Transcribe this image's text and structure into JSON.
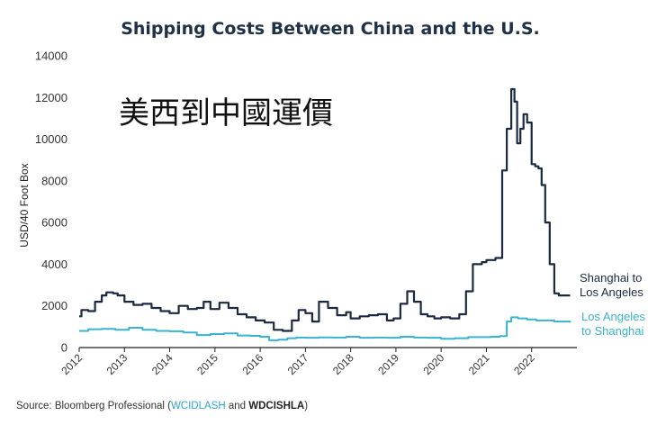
{
  "overlay_text": "美西到中國運價",
  "source": {
    "prefix": "Source: Bloomberg Professional (",
    "code1": "WCIDLASH",
    "and": " and ",
    "code2": "WDCISHLA",
    "suffix": ")"
  },
  "colors": {
    "series1": "#1b2a40",
    "series2": "#3ab3cf",
    "title": "#1f3146",
    "axis": "#222222"
  },
  "chart_data": {
    "type": "line",
    "title": "Shipping Costs Between China and the U.S.",
    "ylabel": "USD/40 Foot Box",
    "xlabel": "",
    "xlim": [
      2012,
      2023
    ],
    "ylim": [
      0,
      14000
    ],
    "yticks": [
      0,
      2000,
      4000,
      6000,
      8000,
      10000,
      12000,
      14000
    ],
    "ytick_labels": [
      "0",
      "2000",
      "4000",
      "6000",
      "8000",
      "10000",
      "12000",
      "14000"
    ],
    "xticks": [
      2012,
      2013,
      2014,
      2015,
      2016,
      2017,
      2018,
      2019,
      2020,
      2021,
      2022
    ],
    "xtick_labels": [
      "2012",
      "2013",
      "2014",
      "2015",
      "2016",
      "2017",
      "2018",
      "2019",
      "2020",
      "2021",
      "2022"
    ],
    "grid": false,
    "series": [
      {
        "name": "Shanghai to Los Angeles",
        "label_lines": [
          "Shanghai to",
          "Los Angeles"
        ],
        "x": [
          2012.0,
          2012.05,
          2012.2,
          2012.35,
          2012.5,
          2012.6,
          2012.75,
          2012.85,
          2013.0,
          2013.2,
          2013.4,
          2013.6,
          2013.8,
          2014.0,
          2014.2,
          2014.4,
          2014.6,
          2014.75,
          2014.9,
          2015.1,
          2015.3,
          2015.5,
          2015.7,
          2015.9,
          2016.1,
          2016.3,
          2016.5,
          2016.7,
          2016.85,
          2017.0,
          2017.15,
          2017.3,
          2017.5,
          2017.7,
          2017.9,
          2018.0,
          2018.2,
          2018.4,
          2018.6,
          2018.8,
          2018.95,
          2019.1,
          2019.25,
          2019.4,
          2019.55,
          2019.7,
          2019.85,
          2020.0,
          2020.2,
          2020.4,
          2020.55,
          2020.7,
          2020.9,
          2021.0,
          2021.2,
          2021.35,
          2021.45,
          2021.55,
          2021.62,
          2021.68,
          2021.75,
          2021.82,
          2021.9,
          2022.0,
          2022.08,
          2022.15,
          2022.22,
          2022.3,
          2022.4,
          2022.5,
          2022.6,
          2022.7,
          2022.78,
          2022.85
        ],
        "values": [
          1500,
          1800,
          1750,
          2200,
          2500,
          2650,
          2600,
          2500,
          2200,
          2050,
          2100,
          1900,
          1750,
          1650,
          2000,
          1850,
          1900,
          2200,
          1850,
          2150,
          1900,
          1600,
          1450,
          1300,
          1200,
          850,
          800,
          1300,
          1800,
          1650,
          1250,
          2200,
          1900,
          1550,
          1700,
          1400,
          1500,
          1550,
          1600,
          1300,
          1400,
          2100,
          2700,
          2200,
          1600,
          1500,
          1400,
          1450,
          1400,
          1600,
          2700,
          4000,
          4100,
          4200,
          4300,
          8500,
          10500,
          12400,
          11800,
          9800,
          10500,
          11200,
          10800,
          8800,
          8700,
          8600,
          7800,
          6000,
          4000,
          2600,
          2500,
          2500,
          2500,
          2500
        ]
      },
      {
        "name": "Los Angeles to Shanghai",
        "label_lines": [
          "Los Angeles",
          "to Shanghai"
        ],
        "x": [
          2012.0,
          2012.2,
          2012.5,
          2012.8,
          2013.1,
          2013.4,
          2013.7,
          2014.0,
          2014.3,
          2014.6,
          2014.9,
          2015.2,
          2015.5,
          2015.8,
          2016.0,
          2016.2,
          2016.4,
          2016.6,
          2016.8,
          2017.0,
          2017.3,
          2017.6,
          2017.9,
          2018.2,
          2018.5,
          2018.8,
          2019.1,
          2019.4,
          2019.7,
          2020.0,
          2020.3,
          2020.6,
          2020.9,
          2021.1,
          2021.3,
          2021.45,
          2021.55,
          2021.7,
          2021.9,
          2022.1,
          2022.3,
          2022.5,
          2022.7,
          2022.85
        ],
        "values": [
          800,
          880,
          900,
          850,
          950,
          850,
          800,
          780,
          720,
          600,
          650,
          680,
          580,
          560,
          520,
          350,
          380,
          450,
          480,
          470,
          490,
          480,
          520,
          470,
          480,
          470,
          520,
          480,
          470,
          420,
          450,
          500,
          500,
          520,
          550,
          1250,
          1450,
          1400,
          1350,
          1300,
          1300,
          1250,
          1250,
          1200
        ]
      }
    ]
  }
}
